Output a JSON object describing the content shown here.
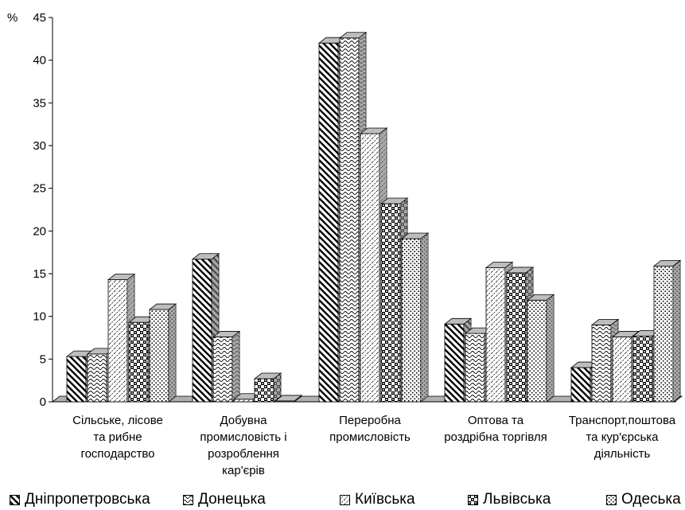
{
  "chart_data": {
    "type": "bar",
    "ylabel": "%",
    "ylim": [
      0,
      45
    ],
    "yticks": [
      0,
      5,
      10,
      15,
      20,
      25,
      30,
      35,
      40,
      45
    ],
    "categories": [
      [
        "Сільське,  лісове",
        "та рибне",
        "господарство"
      ],
      [
        "Добувна",
        "промисловість і",
        "розроблення",
        "кар'єрів"
      ],
      [
        "Переробна",
        "промисловість"
      ],
      [
        "Оптова та",
        "роздрібна торгівля"
      ],
      [
        "Транспорт,поштова",
        "та кур'єрська",
        "діяльність"
      ]
    ],
    "series": [
      {
        "name": "Дніпропетровська",
        "pattern": "diagonal",
        "values": [
          5.3,
          16.7,
          42.0,
          9.1,
          4.0
        ]
      },
      {
        "name": "Донецька",
        "pattern": "wave",
        "values": [
          5.6,
          7.6,
          42.6,
          8.0,
          9.0
        ]
      },
      {
        "name": "Київська",
        "pattern": "dashed-diagonal",
        "values": [
          14.3,
          0.3,
          31.4,
          15.7,
          7.6
        ]
      },
      {
        "name": "Львівська",
        "pattern": "checker",
        "values": [
          9.3,
          2.7,
          23.2,
          15.1,
          7.7
        ]
      },
      {
        "name": "Одеська",
        "pattern": "dots",
        "values": [
          10.8,
          0.1,
          19.1,
          11.9,
          15.9
        ]
      }
    ],
    "grid": false,
    "legend_position": "bottom",
    "style": "3d-clustered-bar"
  },
  "colors": {
    "bar_fill": "#ffffff",
    "bar_side": "#7a7a7a",
    "bar_top": "#bdbdbd",
    "floor": "#b0b0b0",
    "axis": "#000000"
  }
}
